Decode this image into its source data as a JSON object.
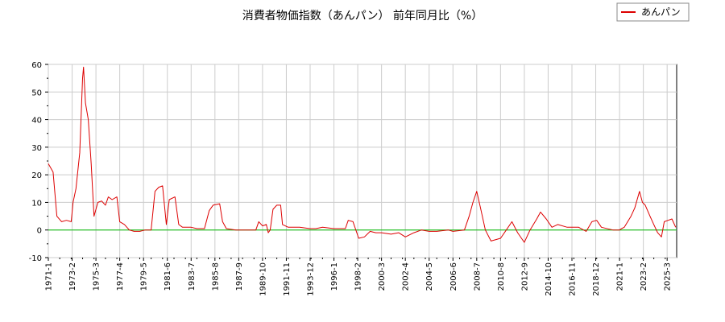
{
  "chart_data": {
    "type": "line",
    "title": "消費者物価指数（あんパン） 前年同月比（%）",
    "xlabel": "",
    "ylabel": "",
    "ylim": [
      -10,
      60
    ],
    "yticks": [
      -10,
      0,
      10,
      20,
      30,
      40,
      50,
      60
    ],
    "xlim": [
      "1971-01",
      "2025-12"
    ],
    "x_tick_labels": [
      "1971-1",
      "1973-2",
      "1975-3",
      "1977-4",
      "1979-5",
      "1981-6",
      "1983-7",
      "1985-8",
      "1987-9",
      "1989-10",
      "1991-11",
      "1993-12",
      "1996-1",
      "1998-2",
      "2000-3",
      "2002-4",
      "2004-5",
      "2006-6",
      "2008-7",
      "2010-8",
      "2012-9",
      "2014-10",
      "2016-11",
      "2018-12",
      "2021-1",
      "2023-2",
      "2025-3"
    ],
    "grid": true,
    "legend_position": "top-right",
    "colors": {
      "series": "#dd0000",
      "zero_line": "#00bb00",
      "grid": "#cccccc"
    },
    "series": [
      {
        "name": "あんパン",
        "points": [
          [
            "1971-01",
            24
          ],
          [
            "1971-06",
            21
          ],
          [
            "1971-10",
            5
          ],
          [
            "1972-03",
            3
          ],
          [
            "1972-08",
            3.5
          ],
          [
            "1973-01",
            3
          ],
          [
            "1973-03",
            10
          ],
          [
            "1973-06",
            15
          ],
          [
            "1973-10",
            28
          ],
          [
            "1974-01",
            55
          ],
          [
            "1974-02",
            59
          ],
          [
            "1974-04",
            46
          ],
          [
            "1974-07",
            40
          ],
          [
            "1974-10",
            24
          ],
          [
            "1975-01",
            5
          ],
          [
            "1975-05",
            10
          ],
          [
            "1975-09",
            10.5
          ],
          [
            "1976-01",
            9
          ],
          [
            "1976-04",
            12
          ],
          [
            "1976-08",
            11
          ],
          [
            "1977-01",
            12
          ],
          [
            "1977-04",
            3
          ],
          [
            "1977-09",
            2
          ],
          [
            "1978-02",
            0
          ],
          [
            "1978-07",
            -0.5
          ],
          [
            "1979-01",
            -0.5
          ],
          [
            "1979-07",
            0
          ],
          [
            "1980-01",
            0
          ],
          [
            "1980-05",
            14
          ],
          [
            "1980-09",
            15.5
          ],
          [
            "1981-01",
            16
          ],
          [
            "1981-05",
            2
          ],
          [
            "1981-08",
            11
          ],
          [
            "1982-02",
            12
          ],
          [
            "1982-06",
            2
          ],
          [
            "1982-10",
            1
          ],
          [
            "1983-07",
            1
          ],
          [
            "1984-01",
            0.5
          ],
          [
            "1984-09",
            0.5
          ],
          [
            "1985-02",
            7
          ],
          [
            "1985-06",
            9
          ],
          [
            "1986-01",
            9.5
          ],
          [
            "1986-04",
            3
          ],
          [
            "1986-08",
            0.5
          ],
          [
            "1987-06",
            0
          ],
          [
            "1989-03",
            0
          ],
          [
            "1989-06",
            3
          ],
          [
            "1989-10",
            1.5
          ],
          [
            "1990-02",
            2
          ],
          [
            "1990-04",
            -1
          ],
          [
            "1990-06",
            0
          ],
          [
            "1990-09",
            7.5
          ],
          [
            "1991-01",
            9
          ],
          [
            "1991-05",
            9
          ],
          [
            "1991-07",
            2
          ],
          [
            "1992-01",
            1
          ],
          [
            "1993-01",
            1
          ],
          [
            "1993-12",
            0.5
          ],
          [
            "1994-06",
            0.5
          ],
          [
            "1995-01",
            1
          ],
          [
            "1996-01",
            0.5
          ],
          [
            "1997-01",
            0.5
          ],
          [
            "1997-04",
            3.5
          ],
          [
            "1997-09",
            3
          ],
          [
            "1998-03",
            -3
          ],
          [
            "1998-09",
            -2.5
          ],
          [
            "1999-03",
            -0.5
          ],
          [
            "1999-09",
            -1
          ],
          [
            "2000-03",
            -1
          ],
          [
            "2001-01",
            -1.5
          ],
          [
            "2001-09",
            -1
          ],
          [
            "2002-04",
            -2.5
          ],
          [
            "2003-01",
            -1
          ],
          [
            "2003-09",
            0
          ],
          [
            "2004-05",
            -0.5
          ],
          [
            "2005-01",
            -0.5
          ],
          [
            "2006-01",
            0
          ],
          [
            "2006-06",
            -0.5
          ],
          [
            "2007-06",
            0
          ],
          [
            "2007-11",
            5
          ],
          [
            "2008-03",
            10
          ],
          [
            "2008-07",
            14
          ],
          [
            "2008-11",
            8
          ],
          [
            "2009-04",
            0
          ],
          [
            "2009-10",
            -4
          ],
          [
            "2010-08",
            -3
          ],
          [
            "2011-02",
            0
          ],
          [
            "2011-08",
            3
          ],
          [
            "2012-02",
            -1
          ],
          [
            "2012-09",
            -4.5
          ],
          [
            "2013-03",
            0
          ],
          [
            "2013-10",
            4
          ],
          [
            "2014-02",
            6.5
          ],
          [
            "2014-08",
            4
          ],
          [
            "2015-02",
            1
          ],
          [
            "2015-08",
            2
          ],
          [
            "2016-06",
            1
          ],
          [
            "2017-06",
            1
          ],
          [
            "2018-02",
            -0.5
          ],
          [
            "2018-08",
            3
          ],
          [
            "2019-01",
            3.5
          ],
          [
            "2019-06",
            1
          ],
          [
            "2020-06",
            0
          ],
          [
            "2021-01",
            0
          ],
          [
            "2021-03",
            0.5
          ],
          [
            "2021-06",
            1
          ],
          [
            "2022-01",
            5
          ],
          [
            "2022-05",
            8
          ],
          [
            "2022-10",
            14
          ],
          [
            "2023-01",
            10
          ],
          [
            "2023-04",
            9
          ],
          [
            "2023-09",
            5
          ],
          [
            "2024-01",
            2
          ],
          [
            "2024-05",
            -1
          ],
          [
            "2024-09",
            -2.5
          ],
          [
            "2024-12",
            3
          ],
          [
            "2025-04",
            3.5
          ],
          [
            "2025-08",
            4
          ],
          [
            "2025-12",
            1
          ]
        ]
      }
    ],
    "reference_lines": [
      {
        "y": 0
      }
    ]
  }
}
